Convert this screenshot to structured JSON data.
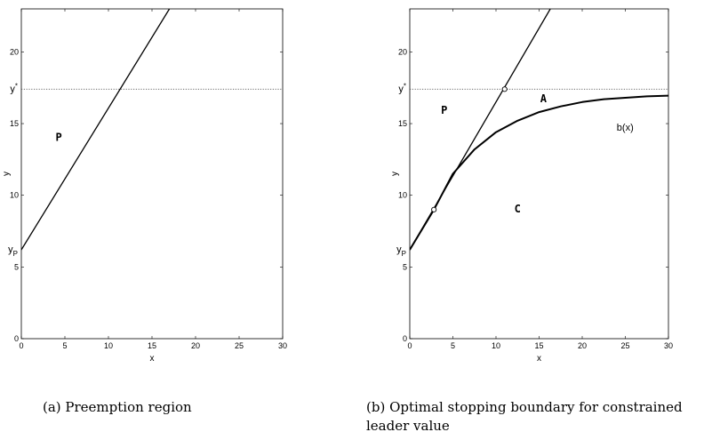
{
  "chart_data": [
    {
      "type": "line",
      "xlabel": "x",
      "ylabel": "y",
      "xlim": [
        0,
        30
      ],
      "ylim": [
        0,
        23
      ],
      "xticks": [
        0,
        5,
        10,
        15,
        20,
        25,
        30
      ],
      "yticks": [
        0,
        5,
        10,
        15,
        20
      ],
      "grid": false,
      "series": [
        {
          "values": [
            [
              0,
              6.2
            ],
            [
              17,
              23
            ]
          ]
        }
      ],
      "hlines": [
        {
          "y": 17.4,
          "label": "y*"
        }
      ],
      "annotations": [
        {
          "text": "yP",
          "x": 0,
          "y": 6.2
        },
        {
          "text": "P",
          "x": 4.3,
          "y": 13.8
        }
      ],
      "caption": "(a) Preemption region"
    },
    {
      "type": "line",
      "xlabel": "x",
      "ylabel": "y",
      "xlim": [
        0,
        30
      ],
      "ylim": [
        0,
        23
      ],
      "xticks": [
        0,
        5,
        10,
        15,
        20,
        25,
        30
      ],
      "yticks": [
        0,
        5,
        10,
        15,
        20
      ],
      "grid": false,
      "series": [
        {
          "values": [
            [
              0,
              6.2
            ],
            [
              16.3,
              23
            ]
          ]
        },
        {
          "name": "b(x)",
          "values": [
            [
              0,
              6.2
            ],
            [
              2.8,
              9
            ],
            [
              5,
              11.5
            ],
            [
              7.5,
              13.2
            ],
            [
              10,
              14.4
            ],
            [
              12.5,
              15.2
            ],
            [
              15,
              15.8
            ],
            [
              17.5,
              16.2
            ],
            [
              20,
              16.5
            ],
            [
              22.5,
              16.7
            ],
            [
              25,
              16.8
            ],
            [
              27.5,
              16.9
            ],
            [
              30,
              16.95
            ]
          ]
        }
      ],
      "hlines": [
        {
          "y": 17.4,
          "label": "y*"
        }
      ],
      "markers": [
        [
          2.8,
          9
        ],
        [
          11,
          17.4
        ]
      ],
      "annotations": [
        {
          "text": "yP",
          "x": 0,
          "y": 6.2
        },
        {
          "text": "P",
          "x": 4,
          "y": 15.7
        },
        {
          "text": "A",
          "x": 15.5,
          "y": 16.5
        },
        {
          "text": "C",
          "x": 12.5,
          "y": 8.8
        },
        {
          "text": "b(x)",
          "x": 24,
          "y": 14.5
        }
      ],
      "caption": "(b) Optimal stopping boundary for constrained leader value"
    }
  ]
}
